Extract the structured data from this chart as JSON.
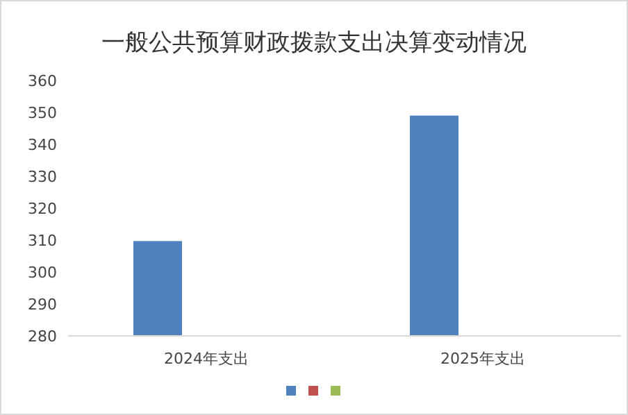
{
  "chart_data": {
    "type": "bar",
    "title": "一般公共预算财政拨款支出决算变动情况",
    "categories": [
      "2024年支出",
      "2025年支出"
    ],
    "series": [
      {
        "color": "#4f81bd",
        "values": [
          309.7,
          349
        ]
      },
      {
        "color": "#c0504d",
        "values": [
          null,
          null
        ]
      },
      {
        "color": "#9bbb59",
        "values": [
          null,
          null
        ]
      }
    ],
    "ylim": [
      280,
      360
    ],
    "yticks": [
      280,
      290,
      300,
      310,
      320,
      330,
      340,
      350,
      360
    ],
    "grid": false
  }
}
